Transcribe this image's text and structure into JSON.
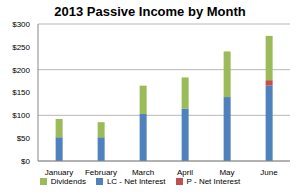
{
  "chart_data": {
    "type": "bar",
    "title": "2013 Passive Income by Month",
    "categories": [
      "January",
      "February",
      "March",
      "April",
      "May",
      "June"
    ],
    "series": [
      {
        "name": "LC - Net Interest",
        "color": "#4f81bd",
        "values": [
          52,
          52,
          103,
          115,
          140,
          165
        ]
      },
      {
        "name": "P - Net Interest",
        "color": "#c0504d",
        "values": [
          0,
          0,
          0,
          0,
          0,
          12
        ]
      },
      {
        "name": "Dividends",
        "color": "#9bbb59",
        "values": [
          40,
          33,
          62,
          68,
          100,
          97
        ]
      }
    ],
    "stacked": true,
    "ylim": [
      0,
      300
    ],
    "yticks": [
      {
        "value": 0,
        "label": "$0"
      },
      {
        "value": 50,
        "label": "$50"
      },
      {
        "value": 100,
        "label": "$100"
      },
      {
        "value": 150,
        "label": "$150"
      },
      {
        "value": 200,
        "label": "$200"
      },
      {
        "value": 250,
        "label": "$250"
      },
      {
        "value": 300,
        "label": "$300"
      }
    ],
    "grid": true,
    "legend": "bottom"
  }
}
